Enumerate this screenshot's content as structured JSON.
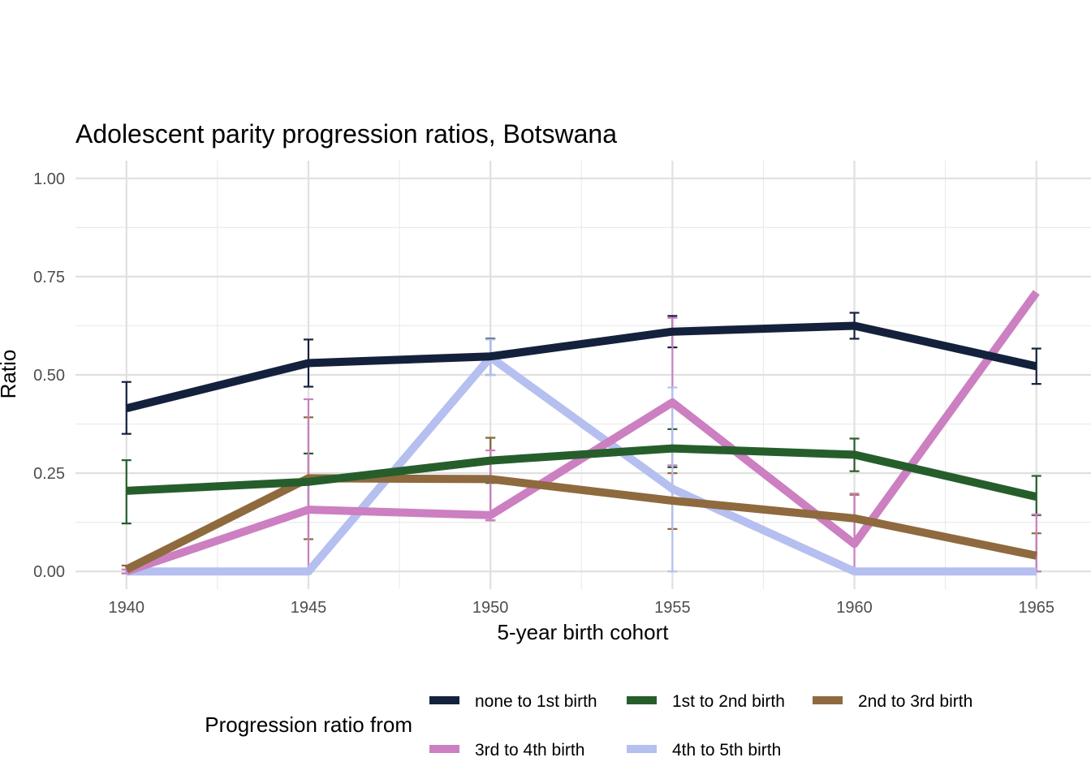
{
  "chart_data": {
    "type": "line",
    "title": "Adolescent parity progression ratios,  Botswana",
    "xlabel": "5-year birth cohort",
    "ylabel": "Ratio",
    "x": [
      1940,
      1945,
      1950,
      1955,
      1960,
      1965
    ],
    "x_tick_labels": [
      "1940",
      "1945",
      "1950",
      "1955",
      "1960",
      "1965"
    ],
    "y_ticks": [
      0,
      0.25,
      0.5,
      0.75,
      1.0
    ],
    "y_tick_labels": [
      "0.00",
      "0.25",
      "0.50",
      "0.75",
      "1.00"
    ],
    "xlim": [
      1938.6,
      1966.5
    ],
    "ylim": [
      -0.045,
      1.045
    ],
    "grid": true,
    "legend": {
      "title": "Progression ratio from",
      "position": "bottom"
    },
    "series": [
      {
        "name": "none to 1st birth",
        "color": "#14213d",
        "values": [
          0.415,
          0.53,
          0.547,
          0.61,
          0.625,
          0.522
        ],
        "error_low": [
          0.35,
          0.47,
          0.5,
          0.57,
          0.592,
          0.477
        ],
        "error_high": [
          0.482,
          0.59,
          0.592,
          0.65,
          0.658,
          0.567
        ]
      },
      {
        "name": "1st to 2nd birth",
        "color": "#265e2b",
        "values": [
          0.205,
          0.228,
          0.282,
          0.313,
          0.297,
          0.19
        ],
        "error_low": [
          0.122,
          0.16,
          0.225,
          0.265,
          0.255,
          0.143
        ],
        "error_high": [
          0.283,
          0.3,
          0.34,
          0.362,
          0.338,
          0.243
        ]
      },
      {
        "name": "2nd to 3rd birth",
        "color": "#8e6a3e",
        "values": [
          0.005,
          0.237,
          0.235,
          0.18,
          0.135,
          0.04
        ],
        "error_low": [
          -0.005,
          0.082,
          0.13,
          0.108,
          0.075,
          0.0
        ],
        "error_high": [
          0.015,
          0.392,
          0.34,
          0.25,
          0.195,
          0.097
        ]
      },
      {
        "name": "3rd to 4th birth",
        "color": "#cc7fc1",
        "values": [
          0.0,
          0.157,
          0.143,
          0.43,
          0.07,
          0.71
        ],
        "error_low": [
          -0.005,
          0.0,
          0.13,
          0.27,
          0.0,
          0.0
        ],
        "error_high": [
          0.005,
          0.438,
          0.308,
          0.645,
          0.198,
          0.145
        ]
      },
      {
        "name": "4th to 5th birth",
        "color": "#b5bff0",
        "values": [
          0.0,
          0.0,
          0.545,
          0.21,
          0.0,
          0.0
        ],
        "error_low": [
          0.0,
          0.0,
          0.5,
          0.0,
          0.0,
          0.0
        ],
        "error_high": [
          0.0,
          0.0,
          0.59,
          0.468,
          0.0,
          0.0
        ]
      }
    ]
  }
}
